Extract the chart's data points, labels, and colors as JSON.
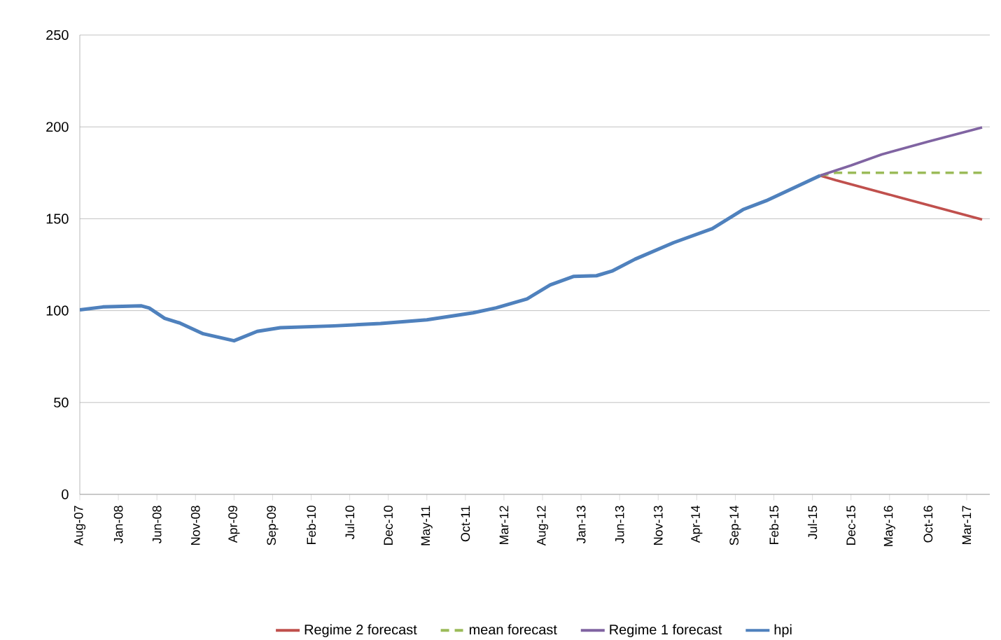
{
  "chart_data": {
    "type": "line",
    "xlim": [
      "2007-08",
      "2017-06"
    ],
    "ylim": [
      0,
      250
    ],
    "yticks": [
      0,
      50,
      100,
      150,
      200,
      250
    ],
    "grid": "y",
    "legend": "bottom",
    "xticks": [
      {
        "value": "2007-08",
        "label": "Aug-07"
      },
      {
        "value": "2008-01",
        "label": "Jan-08"
      },
      {
        "value": "2008-06",
        "label": "Jun-08"
      },
      {
        "value": "2008-11",
        "label": "Nov-08"
      },
      {
        "value": "2009-04",
        "label": "Apr-09"
      },
      {
        "value": "2009-09",
        "label": "Sep-09"
      },
      {
        "value": "2010-02",
        "label": "Feb-10"
      },
      {
        "value": "2010-07",
        "label": "Jul-10"
      },
      {
        "value": "2010-12",
        "label": "Dec-10"
      },
      {
        "value": "2011-05",
        "label": "May-11"
      },
      {
        "value": "2011-10",
        "label": "Oct-11"
      },
      {
        "value": "2012-03",
        "label": "Mar-12"
      },
      {
        "value": "2012-08",
        "label": "Aug-12"
      },
      {
        "value": "2013-01",
        "label": "Jan-13"
      },
      {
        "value": "2013-06",
        "label": "Jun-13"
      },
      {
        "value": "2013-11",
        "label": "Nov-13"
      },
      {
        "value": "2014-04",
        "label": "Apr-14"
      },
      {
        "value": "2014-09",
        "label": "Sep-14"
      },
      {
        "value": "2015-02",
        "label": "Feb-15"
      },
      {
        "value": "2015-07",
        "label": "Jul-15"
      },
      {
        "value": "2015-12",
        "label": "Dec-15"
      },
      {
        "value": "2016-05",
        "label": "May-16"
      },
      {
        "value": "2016-10",
        "label": "Oct-16"
      },
      {
        "value": "2017-03",
        "label": "Mar-17"
      }
    ],
    "series": [
      {
        "name": "Regime 2 forecast",
        "color": "#c0504d",
        "line_style": "solid",
        "x": [
          "2015-08",
          "2015-10",
          "2016-06",
          "2017-05"
        ],
        "values": [
          173.5,
          171,
          162,
          149.6
        ]
      },
      {
        "name": "mean forecast",
        "color": "#9bbb59",
        "line_style": "dashed",
        "x": [
          "2015-08",
          "2015-10",
          "2017-05"
        ],
        "values": [
          173.5,
          175,
          175
        ]
      },
      {
        "name": "Regime 1 forecast",
        "color": "#8064a2",
        "line_style": "solid",
        "x": [
          "2015-08",
          "2015-12",
          "2016-04",
          "2016-10",
          "2017-05"
        ],
        "values": [
          173.5,
          179,
          185,
          192,
          199.7
        ]
      },
      {
        "name": "hpi",
        "color": "#4f81bd",
        "line_style": "solid",
        "x": [
          "2007-08",
          "2007-11",
          "2008-04",
          "2008-05",
          "2008-07",
          "2008-09",
          "2008-12",
          "2009-04",
          "2009-07",
          "2009-10",
          "2010-05",
          "2010-11",
          "2011-05",
          "2011-11",
          "2012-02",
          "2012-06",
          "2012-09",
          "2012-12",
          "2013-03",
          "2013-05",
          "2013-08",
          "2014-01",
          "2014-06",
          "2014-10",
          "2015-01",
          "2015-08"
        ],
        "values": [
          100.4,
          102,
          102.6,
          101.4,
          95.8,
          93.2,
          87.4,
          83.6,
          88.7,
          90.7,
          91.7,
          93,
          95,
          98.8,
          101.5,
          106.4,
          114,
          118.6,
          119,
          121.5,
          128,
          137,
          144.6,
          155,
          159.8,
          173.5
        ]
      }
    ]
  }
}
